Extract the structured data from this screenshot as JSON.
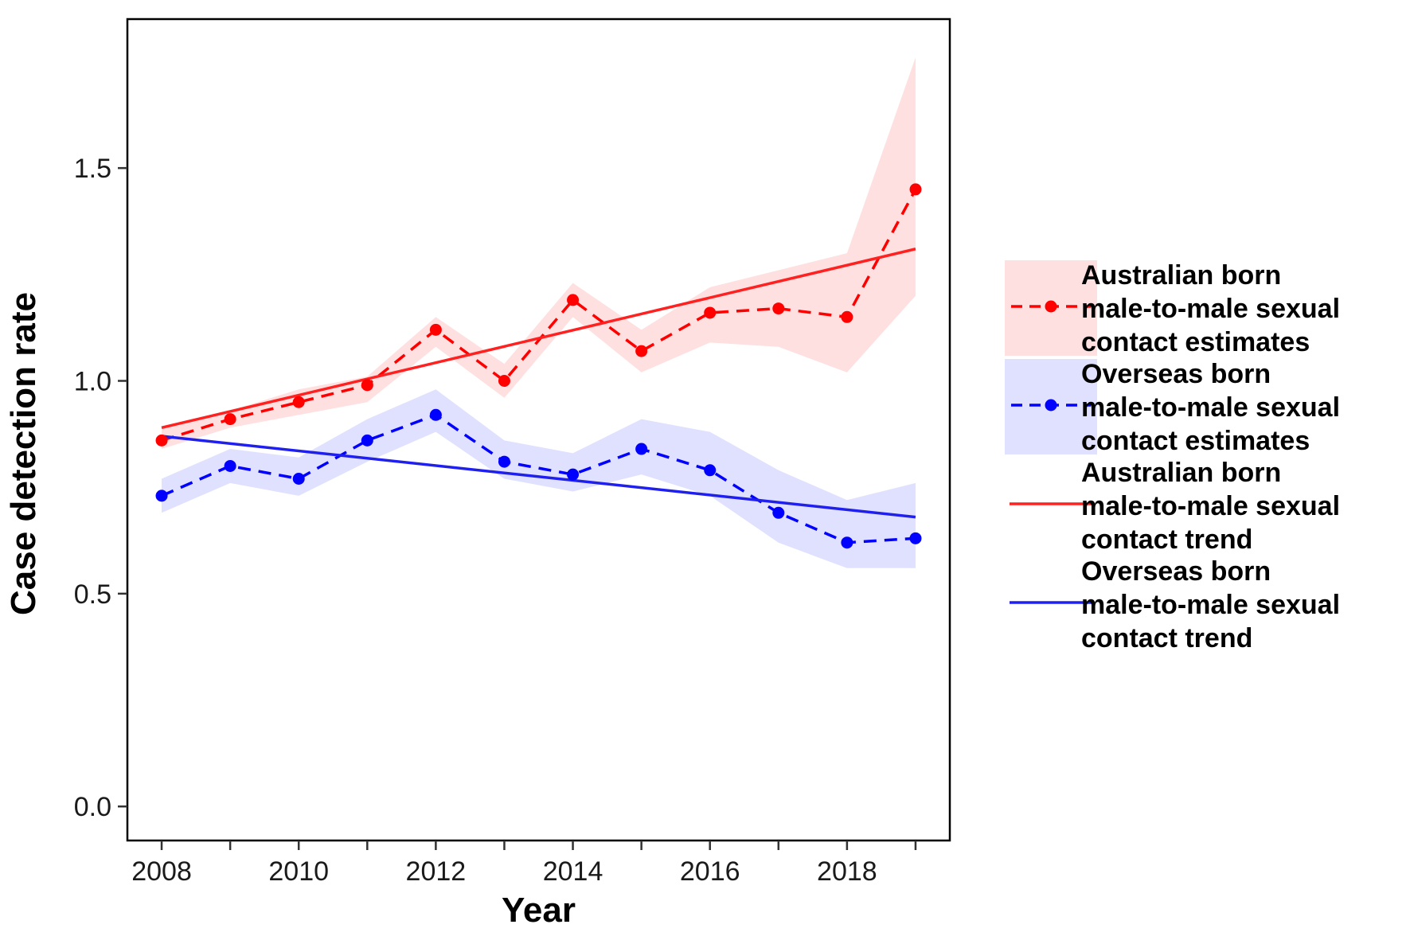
{
  "chart_data": {
    "type": "line",
    "title": "",
    "xlabel": "Year",
    "ylabel": "Case detection rate",
    "xlim": [
      2007.5,
      2019.5
    ],
    "ylim": [
      -0.08,
      1.85
    ],
    "x_ticks": [
      2008,
      2009,
      2010,
      2011,
      2012,
      2013,
      2014,
      2015,
      2016,
      2017,
      2018,
      2019
    ],
    "x_tick_labels": [
      "2008",
      "",
      "2010",
      "",
      "2012",
      "",
      "2014",
      "",
      "2016",
      "",
      "2018",
      ""
    ],
    "y_ticks": [
      0.0,
      0.5,
      1.0,
      1.5
    ],
    "y_tick_labels": [
      "0.0",
      "0.5",
      "1.0",
      "1.5"
    ],
    "grid": false,
    "legend_position": "right",
    "series": [
      {
        "name": "Australian born male-to-male sexual contact estimates",
        "legend_lines": [
          "Australian born",
          "male-to-male sexual",
          "contact estimates"
        ],
        "kind": "estimates",
        "color": "#ff0000",
        "band_color": "#ffe0e0",
        "x": [
          2008,
          2009,
          2010,
          2011,
          2012,
          2013,
          2014,
          2015,
          2016,
          2017,
          2018,
          2019
        ],
        "y": [
          0.86,
          0.91,
          0.95,
          0.99,
          1.12,
          1.0,
          1.19,
          1.07,
          1.16,
          1.17,
          1.15,
          1.45
        ],
        "lower": [
          0.84,
          0.89,
          0.92,
          0.95,
          1.08,
          0.96,
          1.15,
          1.02,
          1.09,
          1.08,
          1.02,
          1.2
        ],
        "upper": [
          0.89,
          0.93,
          0.98,
          1.01,
          1.15,
          1.04,
          1.23,
          1.12,
          1.22,
          1.26,
          1.3,
          1.76
        ]
      },
      {
        "name": "Overseas born male-to-male sexual contact estimates",
        "legend_lines": [
          "Overseas born",
          "male-to-male sexual",
          "contact estimates"
        ],
        "kind": "estimates",
        "color": "#0000ff",
        "band_color": "#e0e0ff",
        "x": [
          2008,
          2009,
          2010,
          2011,
          2012,
          2013,
          2014,
          2015,
          2016,
          2017,
          2018,
          2019
        ],
        "y": [
          0.73,
          0.8,
          0.77,
          0.86,
          0.92,
          0.81,
          0.78,
          0.84,
          0.79,
          0.69,
          0.62,
          0.63
        ],
        "lower": [
          0.69,
          0.76,
          0.73,
          0.81,
          0.88,
          0.77,
          0.74,
          0.78,
          0.73,
          0.62,
          0.56,
          0.56
        ],
        "upper": [
          0.77,
          0.84,
          0.82,
          0.91,
          0.98,
          0.86,
          0.83,
          0.91,
          0.88,
          0.79,
          0.72,
          0.76
        ]
      },
      {
        "name": "Australian born male-to-male sexual contact trend",
        "legend_lines": [
          "Australian born",
          "male-to-male sexual",
          "contact trend"
        ],
        "kind": "trend",
        "color": "#ff2020",
        "x": [
          2008,
          2019
        ],
        "y": [
          0.89,
          1.31
        ]
      },
      {
        "name": "Overseas born male-to-male sexual contact trend",
        "legend_lines": [
          "Overseas born",
          "male-to-male sexual",
          "contact trend"
        ],
        "kind": "trend",
        "color": "#2020ee",
        "x": [
          2008,
          2019
        ],
        "y": [
          0.87,
          0.68
        ]
      }
    ]
  }
}
